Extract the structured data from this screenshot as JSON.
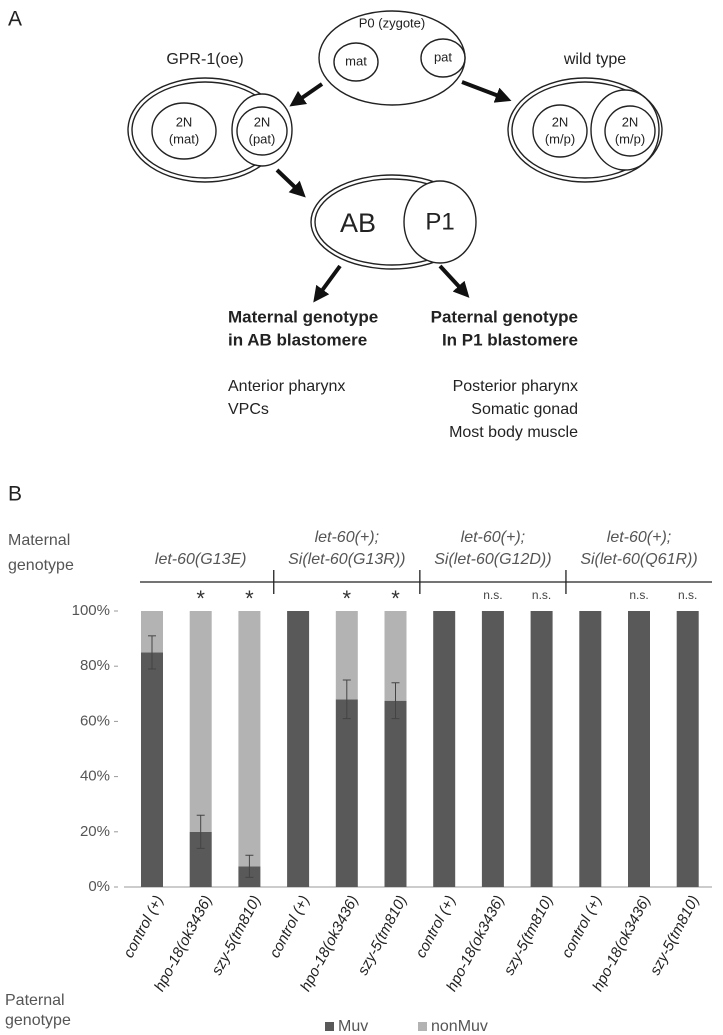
{
  "panel_a": {
    "label": "A",
    "p0": "P0 (zygote)",
    "mat": "mat",
    "pat": "pat",
    "left_title": "GPR-1(oe)",
    "right_title": "wild type",
    "left_cells": [
      [
        "2N",
        "(mat)"
      ],
      [
        "2N",
        "(pat)"
      ]
    ],
    "right_cells": [
      [
        "2N",
        "(m/p)"
      ],
      [
        "2N",
        "(m/p)"
      ]
    ],
    "ab": "AB",
    "p1": "P1",
    "maternal_heading": [
      "Maternal genotype",
      "in AB blastomere"
    ],
    "paternal_heading": [
      "Paternal genotype",
      "In P1 blastomere"
    ],
    "maternal_tissues": [
      "Anterior pharynx",
      "VPCs"
    ],
    "paternal_tissues": [
      "Posterior pharynx",
      "Somatic gonad",
      "Most body muscle"
    ]
  },
  "chart_data": {
    "type": "stacked_bar",
    "panel_label": "B",
    "maternal_label": [
      "Maternal",
      "genotype"
    ],
    "paternal_label": [
      "Paternal",
      "genotype"
    ],
    "groups": [
      [
        "let-60(G13E)"
      ],
      [
        "let-60(+);",
        "Si(let-60(G13R))"
      ],
      [
        "let-60(+);",
        "Si(let-60(G12D))"
      ],
      [
        "let-60(+);",
        "Si(let-60(Q61R))"
      ]
    ],
    "categories": [
      "control (+)",
      "hpo-18(ok3436)",
      "szy-5(tm810)",
      "control (+)",
      "hpo-18(ok3436)",
      "szy-5(tm810)",
      "control (+)",
      "hpo-18(ok3436)",
      "szy-5(tm810)",
      "control (+)",
      "hpo-18(ok3436)",
      "szy-5(tm810)"
    ],
    "series": [
      {
        "name": "Muv",
        "color": "#595959",
        "values": [
          85,
          20,
          7.5,
          100,
          68,
          67.5,
          100,
          100,
          100,
          100,
          100,
          100
        ],
        "errors": [
          6,
          6,
          4,
          null,
          7,
          6.5,
          null,
          null,
          null,
          null,
          null,
          null
        ]
      },
      {
        "name": "nonMuv",
        "color": "#b3b3b3",
        "values": [
          15,
          80,
          92.5,
          0,
          32,
          32.5,
          0,
          0,
          0,
          0,
          0,
          0
        ]
      }
    ],
    "annotations": [
      null,
      "*",
      "*",
      null,
      "*",
      "*",
      null,
      "n.s.",
      "n.s.",
      null,
      "n.s.",
      "n.s."
    ],
    "ylim": [
      0,
      100
    ],
    "yticks": [
      {
        "value": 0,
        "label": "0%"
      },
      {
        "value": 20,
        "label": "20%"
      },
      {
        "value": 40,
        "label": "40%"
      },
      {
        "value": 60,
        "label": "60%"
      },
      {
        "value": 80,
        "label": "80%"
      },
      {
        "value": 100,
        "label": "100%"
      }
    ],
    "legend": "bottom"
  }
}
